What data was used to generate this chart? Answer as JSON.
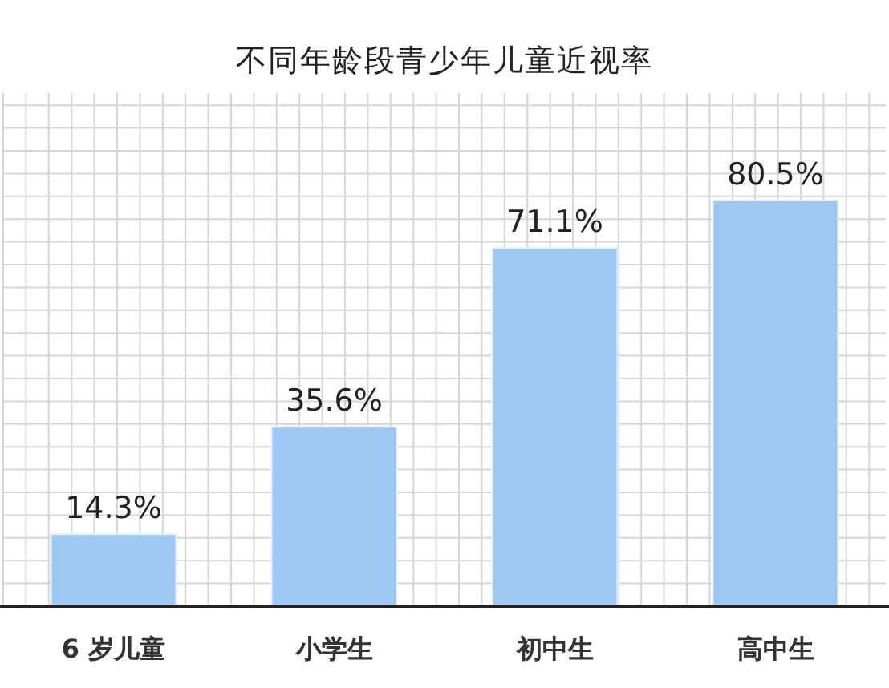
{
  "chart_data": {
    "type": "bar",
    "title": "不同年龄段青少年儿童近视率",
    "categories": [
      "6 岁儿童",
      "小学生",
      "初中生",
      "高中生"
    ],
    "values": [
      14.3,
      35.6,
      71.1,
      80.5
    ],
    "value_labels": [
      "14.3%",
      "35.6%",
      "71.1%",
      "80.5%"
    ],
    "color": "#9dc8f3",
    "grid": true
  }
}
